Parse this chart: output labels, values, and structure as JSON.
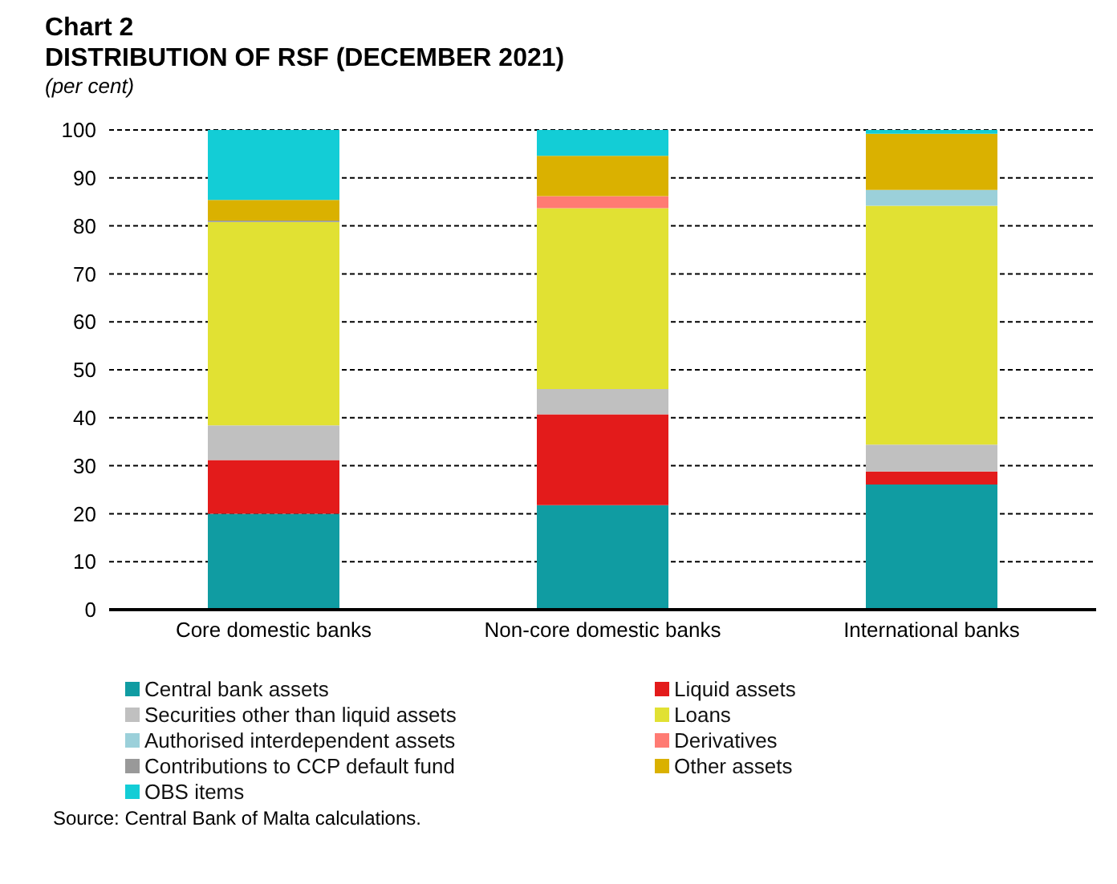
{
  "chart_data": {
    "type": "bar",
    "stacked": true,
    "title": "Chart 2\nDISTRIBUTION OF RSF (DECEMBER 2021)",
    "subtitle": "(per cent)",
    "categories": [
      "Core domestic banks",
      "Non-core domestic banks",
      "International banks"
    ],
    "series": [
      {
        "name": "Central bank assets",
        "color": "#109ca2",
        "values": [
          20,
          21.8,
          26.1
        ]
      },
      {
        "name": "Liquid assets",
        "color": "#e31b1b",
        "values": [
          11.2,
          18.9,
          2.7
        ]
      },
      {
        "name": "Securities other than liquid assets",
        "color": "#c0c0c0",
        "values": [
          7.2,
          5.3,
          5.6
        ]
      },
      {
        "name": "Loans",
        "color": "#e1e133",
        "values": [
          42.4,
          37.7,
          49.8
        ]
      },
      {
        "name": "Authorised interdependent assets",
        "color": "#9bd0da",
        "values": [
          0,
          0,
          3.3
        ]
      },
      {
        "name": "Derivatives",
        "color": "#ff7b73",
        "values": [
          0,
          2.5,
          0
        ]
      },
      {
        "name": "Contributions to CCP default fund",
        "color": "#999999",
        "values": [
          0.3,
          0,
          0
        ]
      },
      {
        "name": "Other assets",
        "color": "#dab100",
        "values": [
          4.3,
          8.4,
          11.7
        ]
      },
      {
        "name": "OBS items",
        "color": "#13cdd6",
        "values": [
          14.6,
          5.4,
          0.8
        ]
      }
    ],
    "ylim": [
      0,
      100
    ],
    "yticks": [
      0,
      10,
      20,
      30,
      40,
      50,
      60,
      70,
      80,
      90,
      100
    ],
    "grid": "y",
    "legend": "bottom",
    "annotations": [
      "Source: Central Bank of Malta calculations."
    ]
  }
}
